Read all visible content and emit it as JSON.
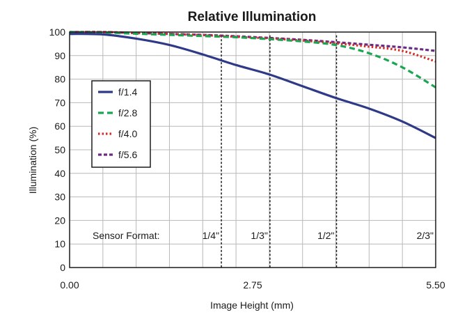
{
  "chart_data": {
    "type": "line",
    "title": "Relative Illumination",
    "xlabel": "Image Height (mm)",
    "ylabel": "Illumination (%)",
    "xlim": [
      0,
      5.5
    ],
    "ylim": [
      0,
      100
    ],
    "x_ticks": [
      0,
      2.75,
      5.5
    ],
    "x_tick_labels": [
      "0.00",
      "2.75",
      "5.50"
    ],
    "y_ticks": [
      0,
      10,
      20,
      30,
      40,
      50,
      60,
      70,
      80,
      90,
      100
    ],
    "y_tick_labels": [
      "0",
      "10",
      "20",
      "30",
      "40",
      "50",
      "60",
      "70",
      "80",
      "90",
      "100"
    ],
    "grid": true,
    "legend_position": "left",
    "series": [
      {
        "name": "f/1.4",
        "color": "#2e3a87",
        "dash": "solid",
        "x": [
          0,
          0.5,
          1.0,
          1.5,
          2.0,
          2.5,
          3.0,
          3.5,
          4.0,
          4.5,
          5.0,
          5.5
        ],
        "y": [
          99.2,
          99.0,
          97.2,
          94.5,
          90.5,
          86.0,
          82.0,
          77.0,
          72.0,
          67.5,
          62.0,
          55.0
        ]
      },
      {
        "name": "f/2.8",
        "color": "#1aa651",
        "dash": "8,5",
        "x": [
          0,
          0.5,
          1.0,
          1.5,
          2.0,
          2.5,
          3.0,
          3.5,
          4.0,
          4.5,
          5.0,
          5.5
        ],
        "y": [
          100,
          99.8,
          99.3,
          98.8,
          98.3,
          97.8,
          97.0,
          96.0,
          94.5,
          91.0,
          85.0,
          76.5
        ]
      },
      {
        "name": "f/4.0",
        "color": "#d42d27",
        "dash": "2.5,3",
        "x": [
          0,
          0.5,
          1.0,
          1.5,
          2.0,
          2.5,
          3.0,
          3.5,
          4.0,
          4.5,
          5.0,
          5.5
        ],
        "y": [
          100,
          100,
          99.6,
          99.2,
          98.7,
          98.0,
          97.3,
          96.4,
          95.2,
          93.8,
          92.0,
          87.5
        ]
      },
      {
        "name": "f/5.6",
        "color": "#6b2b82",
        "dash": "5,3",
        "x": [
          0,
          0.5,
          1.0,
          1.5,
          2.0,
          2.5,
          3.0,
          3.5,
          4.0,
          4.5,
          5.0,
          5.5
        ],
        "y": [
          100,
          100,
          99.6,
          99.2,
          98.8,
          98.2,
          97.5,
          96.7,
          95.7,
          94.6,
          93.5,
          92.0
        ]
      }
    ],
    "annotations": {
      "sensor_format_label": "Sensor Format:",
      "sensor_formats": [
        {
          "label": "1/4\"",
          "x": 2.28
        },
        {
          "label": "1/3\"",
          "x": 3.01
        },
        {
          "label": "1/2\"",
          "x": 4.01
        },
        {
          "label": "2/3\"",
          "x": 5.5
        }
      ]
    }
  }
}
